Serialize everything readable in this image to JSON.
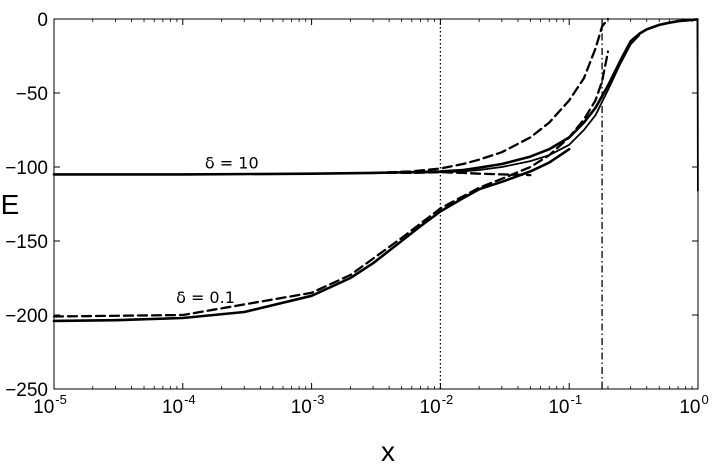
{
  "chart_data": {
    "type": "line",
    "xlabel": "x",
    "ylabel": "E",
    "xscale": "log",
    "xlim": [
      1e-05,
      1
    ],
    "ylim": [
      -250,
      0
    ],
    "xticks": [
      {
        "value": 1e-05,
        "base": "10",
        "exp": "-5"
      },
      {
        "value": 0.0001,
        "base": "10",
        "exp": "-4"
      },
      {
        "value": 0.001,
        "base": "10",
        "exp": "-3"
      },
      {
        "value": 0.01,
        "base": "10",
        "exp": "-2"
      },
      {
        "value": 0.1,
        "base": "10",
        "exp": "-1"
      },
      {
        "value": 1,
        "base": "10",
        "exp": "0"
      }
    ],
    "yticks": [
      {
        "value": 0,
        "label": "0"
      },
      {
        "value": -50,
        "label": "−50"
      },
      {
        "value": -100,
        "label": "−100"
      },
      {
        "value": -150,
        "label": "−150"
      },
      {
        "value": -200,
        "label": "−200"
      },
      {
        "value": -250,
        "label": "−250"
      }
    ],
    "grid": false,
    "annotations": [
      {
        "text": "δ = 10",
        "x": 0.00024,
        "y": -101
      },
      {
        "text": "δ = 0.1",
        "x": 0.00015,
        "y": -192
      }
    ],
    "vlines": [
      {
        "x": 0.01,
        "style": "dotted"
      },
      {
        "x": 0.18,
        "style": "dashdot"
      }
    ],
    "series": [
      {
        "style": "solid-thick",
        "x": [
          1e-05,
          0.0001,
          0.001,
          0.003,
          0.006,
          0.01,
          0.015,
          0.02,
          0.03,
          0.05,
          0.07,
          0.1,
          0.13,
          0.16,
          0.2,
          0.25,
          0.3,
          0.35,
          0.4,
          0.5,
          0.6,
          0.7,
          0.8,
          0.9,
          0.95,
          0.98,
          0.99
        ],
        "y": [
          -105,
          -105,
          -104.5,
          -104,
          -103.5,
          -103,
          -102,
          -100.5,
          -98,
          -93,
          -88,
          -80,
          -70,
          -60,
          -45,
          -28,
          -15,
          -10,
          -7,
          -4,
          -2.5,
          -1.5,
          -1,
          -0.6,
          -0.4,
          -0.3,
          -0.3
        ]
      },
      {
        "style": "solid",
        "x": [
          0.005,
          0.01,
          0.015,
          0.02,
          0.03,
          0.05,
          0.07,
          0.1,
          0.13,
          0.16,
          0.2,
          0.25,
          0.3,
          0.35
        ],
        "y": [
          -104,
          -103.5,
          -103,
          -102,
          -100,
          -96,
          -92,
          -85,
          -75,
          -65,
          -48,
          -30,
          -17,
          -11
        ]
      },
      {
        "style": "solid-thick",
        "x": [
          1e-05,
          3e-05,
          0.0001,
          0.0003,
          0.001,
          0.002,
          0.003,
          0.005,
          0.007,
          0.01,
          0.015,
          0.02,
          0.03,
          0.05,
          0.07,
          0.1
        ],
        "y": [
          -204,
          -203.5,
          -202,
          -198,
          -187,
          -175,
          -165,
          -150,
          -140,
          -130,
          -121,
          -115,
          -110,
          -103,
          -97,
          -88
        ]
      },
      {
        "style": "dashed",
        "x": [
          1e-05,
          0.0001,
          0.001,
          0.002,
          0.005,
          0.01,
          0.02,
          0.03,
          0.05,
          0.07,
          0.1,
          0.13,
          0.16,
          0.18,
          0.2
        ],
        "y": [
          -201,
          -200,
          -185,
          -173,
          -148,
          -128,
          -114,
          -108,
          -100,
          -92,
          -80,
          -68,
          -55,
          -42,
          -22
        ]
      },
      {
        "style": "dashed",
        "x": [
          0.003,
          0.006,
          0.01,
          0.015,
          0.02,
          0.03,
          0.05
        ],
        "y": [
          -104,
          -104,
          -103.5,
          -104,
          -104.5,
          -105,
          -105.5
        ]
      },
      {
        "style": "dashed",
        "x": [
          0.003,
          0.006,
          0.01,
          0.015,
          0.02,
          0.03,
          0.05,
          0.07,
          0.1,
          0.13,
          0.16,
          0.18,
          0.2
        ],
        "y": [
          -104,
          -103,
          -101,
          -98,
          -95,
          -90,
          -80,
          -70,
          -55,
          -40,
          -20,
          -5,
          0
        ]
      },
      {
        "style": "solid",
        "x": [
          0.99,
          0.995,
          0.999
        ],
        "y": [
          -0.3,
          -50,
          -116
        ]
      }
    ]
  }
}
